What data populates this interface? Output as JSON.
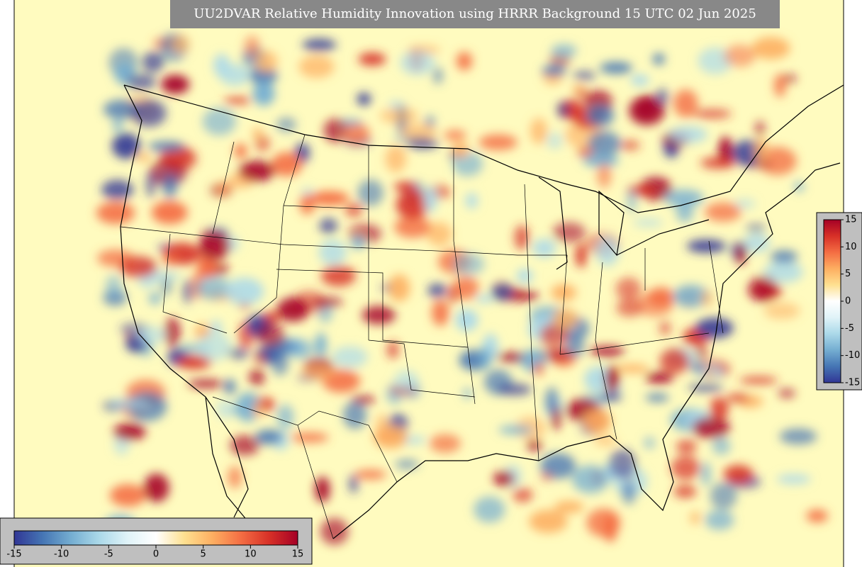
{
  "title": "UU2DVAR Relative Humidity Innovation using HRRR Background 15 UTC 02 Jun 2025",
  "colorbar": {
    "vmin": -15,
    "vmax": 15,
    "ticks": [
      -15,
      -10,
      -5,
      0,
      5,
      10,
      15
    ],
    "colors": [
      "#313695",
      "#4575b4",
      "#74add1",
      "#abd9e9",
      "#e0f3f8",
      "#ffffff",
      "#fee090",
      "#fdae61",
      "#f46d43",
      "#d73027",
      "#a50026"
    ]
  }
}
